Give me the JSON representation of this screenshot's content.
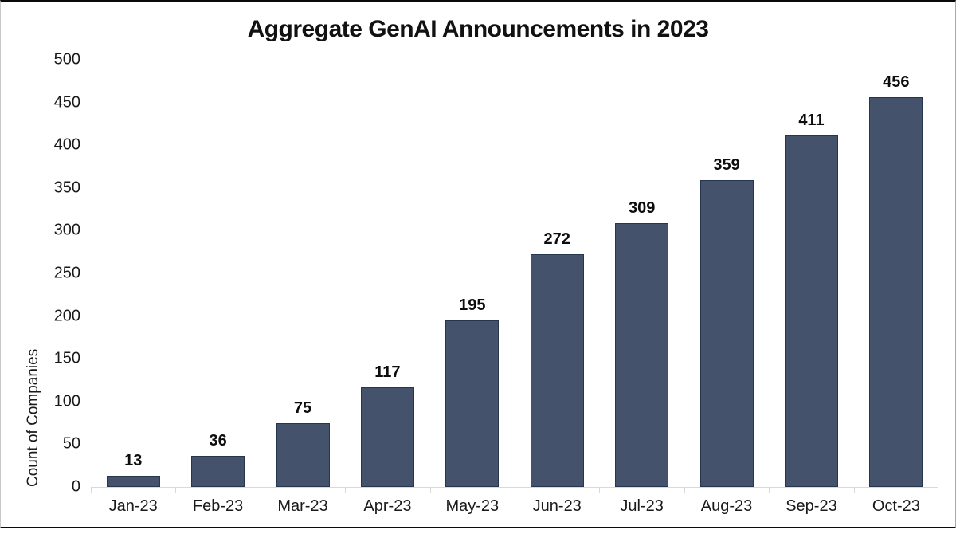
{
  "chart_data": {
    "type": "bar",
    "title": "Aggregate GenAI Announcements in 2023",
    "categories": [
      "Jan-23",
      "Feb-23",
      "Mar-23",
      "Apr-23",
      "May-23",
      "Jun-23",
      "Jul-23",
      "Aug-23",
      "Sep-23",
      "Oct-23"
    ],
    "values": [
      13,
      36,
      75,
      117,
      195,
      272,
      309,
      359,
      411,
      456
    ],
    "xlabel": "",
    "ylabel": "Count of Companies",
    "ylim": [
      0,
      500
    ],
    "ytick_step": 50,
    "grid": false,
    "legend_position": "none",
    "colors": {
      "bar_fill": "#44536B",
      "bar_border": "#26364E",
      "axis_line": "#D9D9D9",
      "text": "#1A1A1A",
      "title_text": "#111111",
      "frame_line": "#0A0A0A",
      "background": "#FFFFFF"
    }
  }
}
